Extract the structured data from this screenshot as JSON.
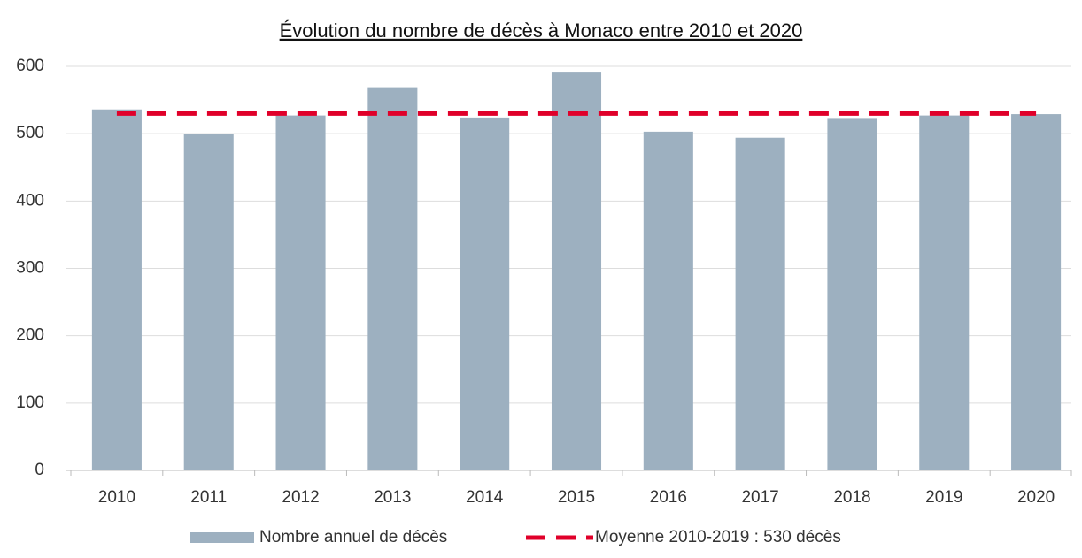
{
  "chart_data": {
    "type": "bar",
    "title": "Évolution du nombre de décès à Monaco entre 2010 et 2020",
    "categories": [
      "2010",
      "2011",
      "2012",
      "2013",
      "2014",
      "2015",
      "2016",
      "2017",
      "2018",
      "2019",
      "2020"
    ],
    "series": [
      {
        "name": "Nombre annuel de décès",
        "type": "bar",
        "color": "#9db0c0",
        "values": [
          536,
          499,
          527,
          569,
          524,
          592,
          503,
          494,
          522,
          527,
          529
        ]
      },
      {
        "name": "Moyenne 2010-2019 : 530 décès",
        "type": "line",
        "dashed": true,
        "color": "#e0002a",
        "values": [
          530,
          530,
          530,
          530,
          530,
          530,
          530,
          530,
          530,
          530,
          530
        ]
      }
    ],
    "ylim": [
      0,
      600
    ],
    "yticks": [
      0,
      100,
      200,
      300,
      400,
      500,
      600
    ],
    "grid": true,
    "legend": "bottom"
  }
}
